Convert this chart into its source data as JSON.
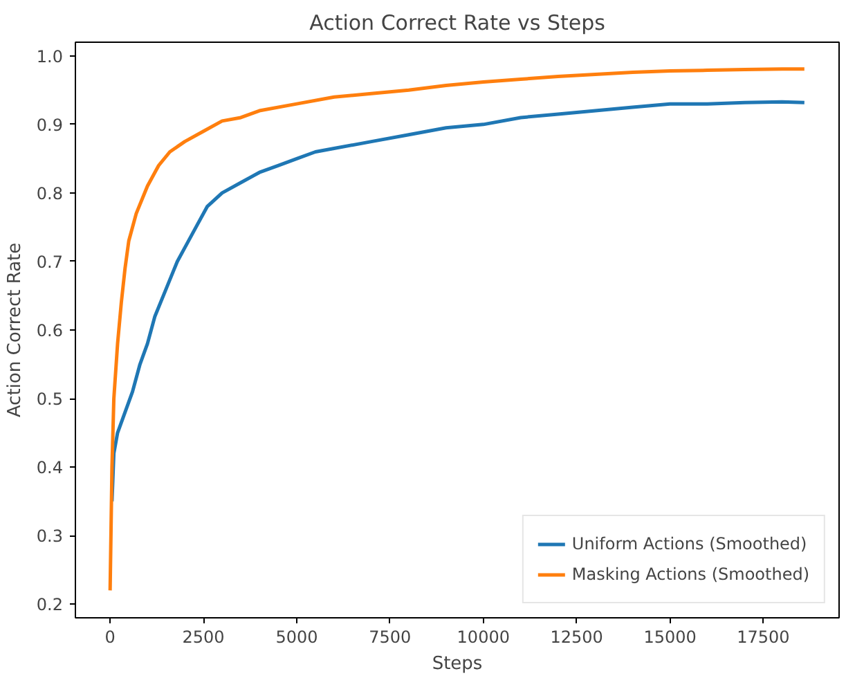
{
  "chart_data": {
    "type": "line",
    "title": "Action Correct Rate vs Steps",
    "xlabel": "Steps",
    "ylabel": "Action Correct Rate",
    "xlim": [
      -930,
      19530
    ],
    "ylim": [
      0.18,
      1.02
    ],
    "xticks": [
      0,
      2500,
      5000,
      7500,
      10000,
      12500,
      15000,
      17500
    ],
    "yticks": [
      {
        "value": 0.2,
        "label": "0.2"
      },
      {
        "value": 0.3,
        "label": "0.3"
      },
      {
        "value": 0.4,
        "label": "0.4"
      },
      {
        "value": 0.5,
        "label": "0.5"
      },
      {
        "value": 0.6,
        "label": "0.6"
      },
      {
        "value": 0.7,
        "label": "0.7"
      },
      {
        "value": 0.8,
        "label": "0.8"
      },
      {
        "value": 0.9,
        "label": "0.9"
      },
      {
        "value": 1.0,
        "label": "1.0"
      }
    ],
    "grid": false,
    "legend": "bottom right",
    "series": [
      {
        "name": "Uniform Actions (Smoothed)",
        "color": "#1f77b4",
        "x": [
          50,
          100,
          200,
          400,
          600,
          800,
          1000,
          1200,
          1500,
          1800,
          2000,
          2300,
          2600,
          3000,
          3500,
          4000,
          4500,
          5000,
          5500,
          6000,
          7000,
          8000,
          9000,
          10000,
          11000,
          12000,
          13000,
          14000,
          15000,
          16000,
          17000,
          18000,
          18600
        ],
        "values": [
          0.35,
          0.42,
          0.45,
          0.48,
          0.51,
          0.55,
          0.58,
          0.62,
          0.66,
          0.7,
          0.72,
          0.75,
          0.78,
          0.8,
          0.815,
          0.83,
          0.84,
          0.85,
          0.86,
          0.865,
          0.875,
          0.885,
          0.895,
          0.9,
          0.91,
          0.915,
          0.92,
          0.925,
          0.93,
          0.93,
          0.932,
          0.933,
          0.932
        ]
      },
      {
        "name": "Masking Actions (Smoothed)",
        "color": "#ff7f0e",
        "x": [
          0,
          50,
          100,
          200,
          300,
          400,
          500,
          700,
          1000,
          1300,
          1600,
          2000,
          2500,
          3000,
          3500,
          4000,
          5000,
          6000,
          7000,
          8000,
          9000,
          10000,
          11000,
          12000,
          13000,
          14000,
          15000,
          16000,
          17000,
          18000,
          18600
        ],
        "values": [
          0.22,
          0.4,
          0.5,
          0.58,
          0.64,
          0.69,
          0.73,
          0.77,
          0.81,
          0.84,
          0.86,
          0.875,
          0.89,
          0.905,
          0.91,
          0.92,
          0.93,
          0.94,
          0.945,
          0.95,
          0.957,
          0.962,
          0.966,
          0.97,
          0.973,
          0.976,
          0.978,
          0.979,
          0.98,
          0.981,
          0.981
        ]
      }
    ]
  }
}
